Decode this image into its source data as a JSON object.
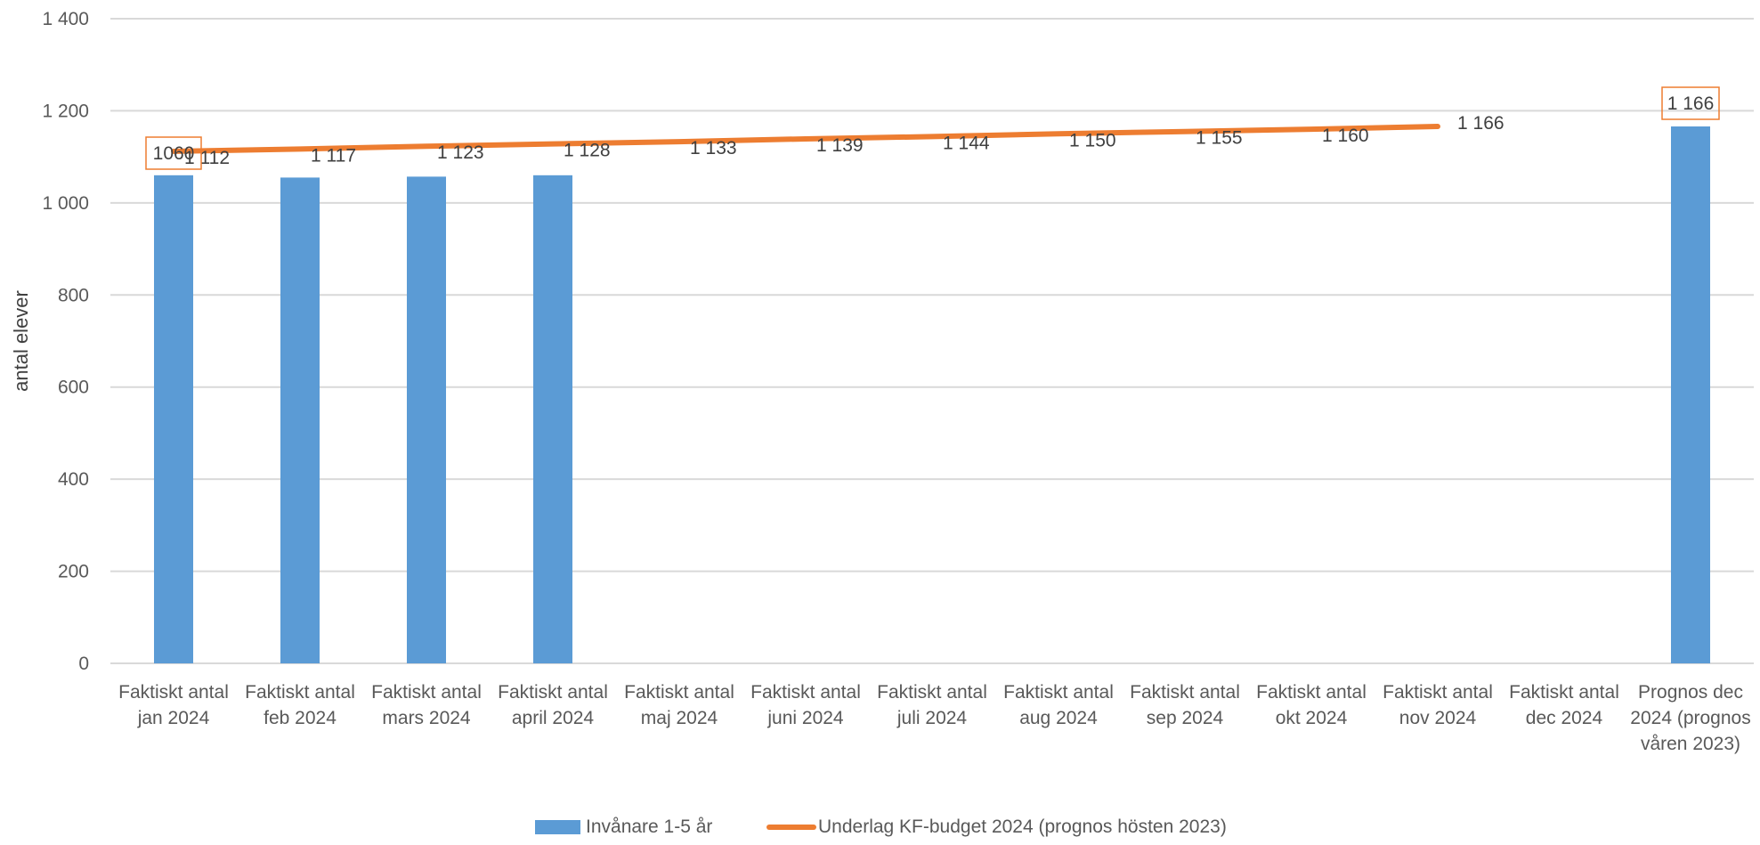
{
  "chart_data": {
    "type": "bar",
    "title": "",
    "xlabel": "",
    "ylabel": "antal elever",
    "ylim": [
      0,
      1400
    ],
    "yticks": [
      0,
      200,
      400,
      600,
      800,
      1000,
      1200,
      1400
    ],
    "ytick_labels": [
      "0",
      "200",
      "400",
      "600",
      "800",
      "1 000",
      "1 200",
      "1 400"
    ],
    "grid": true,
    "legend_position": "bottom",
    "categories": [
      [
        "Faktiskt antal",
        "jan 2024"
      ],
      [
        "Faktiskt antal",
        "feb 2024"
      ],
      [
        "Faktiskt antal",
        "mars 2024"
      ],
      [
        "Faktiskt antal",
        "april 2024"
      ],
      [
        "Faktiskt antal",
        "maj 2024"
      ],
      [
        "Faktiskt antal",
        "juni 2024"
      ],
      [
        "Faktiskt antal",
        "juli 2024"
      ],
      [
        "Faktiskt antal",
        "aug 2024"
      ],
      [
        "Faktiskt antal",
        "sep 2024"
      ],
      [
        "Faktiskt antal",
        "okt 2024"
      ],
      [
        "Faktiskt antal",
        "nov 2024"
      ],
      [
        "Faktiskt antal",
        "dec 2024"
      ],
      [
        "Prognos dec",
        "2024 (prognos",
        "våren 2023)"
      ]
    ],
    "series": [
      {
        "name": "Invånare 1-5 år",
        "type": "bar",
        "color": "#5B9BD5",
        "values": [
          1060,
          1055,
          1057,
          1060,
          null,
          null,
          null,
          null,
          null,
          null,
          null,
          null,
          1166
        ],
        "labels": [
          "1060",
          null,
          null,
          null,
          null,
          null,
          null,
          null,
          null,
          null,
          null,
          null,
          "1 166"
        ]
      },
      {
        "name": "Underlag KF-budget 2024 (prognos hösten 2023)",
        "type": "line",
        "color": "#ED7D31",
        "values": [
          1112,
          1117,
          1123,
          1128,
          1133,
          1139,
          1144,
          1150,
          1155,
          1160,
          1166,
          null,
          null
        ],
        "labels": [
          "1 112",
          "1 117",
          "1 123",
          "1 128",
          "1 133",
          "1 139",
          "1 144",
          "1 150",
          "1 155",
          "1 160",
          "1 166",
          null,
          null
        ]
      }
    ],
    "colors": {
      "axis_text": "#595959",
      "gridline": "#D9D9D9",
      "label_box": "#ED7D31"
    }
  }
}
